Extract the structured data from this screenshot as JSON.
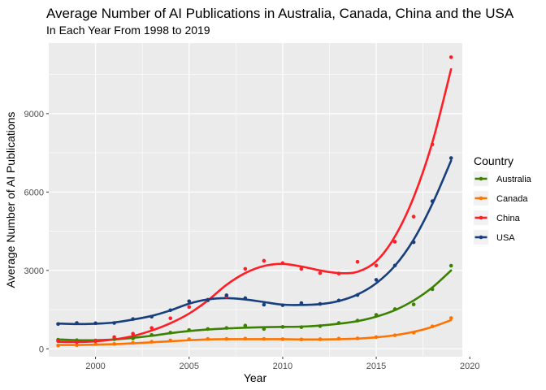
{
  "chart_data": {
    "type": "scatter",
    "title": "Average Number of AI Publications in Australia, Canada, China and the USA",
    "subtitle": "In Each Year From 1998 to 2019",
    "xlabel": "Year",
    "ylabel": "Average Number of AI Publications",
    "xlim": [
      1997.5,
      2019.6
    ],
    "ylim": [
      -300,
      11700
    ],
    "x_ticks": [
      2000,
      2005,
      2010,
      2015,
      2020
    ],
    "y_ticks": [
      0,
      3000,
      6000,
      9000
    ],
    "grid": true,
    "smooth_trend_lines": true,
    "legend": {
      "title": "Country",
      "position": "right"
    },
    "x": [
      1998,
      1999,
      2000,
      2001,
      2002,
      2003,
      2004,
      2005,
      2006,
      2007,
      2008,
      2009,
      2010,
      2011,
      2012,
      2013,
      2014,
      2015,
      2016,
      2017,
      2018,
      2019
    ],
    "series": [
      {
        "name": "Australia",
        "color": "#3a8200",
        "points": [
          350,
          330,
          320,
          370,
          400,
          530,
          620,
          720,
          760,
          800,
          890,
          760,
          840,
          830,
          870,
          990,
          1080,
          1300,
          1520,
          1700,
          2280,
          3180
        ],
        "fit": [
          360,
          330,
          330,
          360,
          420,
          500,
          600,
          680,
          740,
          780,
          810,
          830,
          840,
          850,
          890,
          960,
          1060,
          1230,
          1480,
          1850,
          2350,
          3000
        ]
      },
      {
        "name": "Canada",
        "color": "#ff7400",
        "points": [
          130,
          140,
          180,
          190,
          230,
          270,
          320,
          370,
          380,
          380,
          390,
          380,
          370,
          360,
          370,
          390,
          400,
          450,
          520,
          620,
          860,
          1180
        ],
        "fit": [
          150,
          150,
          160,
          180,
          210,
          250,
          290,
          330,
          360,
          370,
          370,
          370,
          370,
          360,
          360,
          370,
          390,
          440,
          520,
          650,
          840,
          1100
        ]
      },
      {
        "name": "China",
        "color": "#ff1e26",
        "points": [
          300,
          250,
          300,
          450,
          580,
          800,
          1170,
          1600,
          1850,
          2000,
          3060,
          3370,
          3280,
          3060,
          2900,
          2880,
          3330,
          3190,
          4100,
          5060,
          7820,
          11160
        ],
        "fit": [
          270,
          260,
          290,
          360,
          490,
          700,
          980,
          1350,
          1850,
          2450,
          2900,
          3170,
          3250,
          3150,
          3000,
          2900,
          2950,
          3350,
          4300,
          5800,
          7900,
          10700
        ]
      },
      {
        "name": "USA",
        "color": "#173e7d",
        "points": [
          950,
          990,
          980,
          990,
          1140,
          1230,
          1480,
          1820,
          1880,
          2050,
          1940,
          1690,
          1670,
          1750,
          1720,
          1850,
          2060,
          2640,
          3190,
          4080,
          5650,
          7300
        ],
        "fit": [
          970,
          950,
          960,
          1010,
          1120,
          1260,
          1470,
          1730,
          1890,
          1940,
          1890,
          1790,
          1690,
          1680,
          1710,
          1830,
          2080,
          2510,
          3180,
          4180,
          5550,
          7200
        ]
      }
    ]
  }
}
